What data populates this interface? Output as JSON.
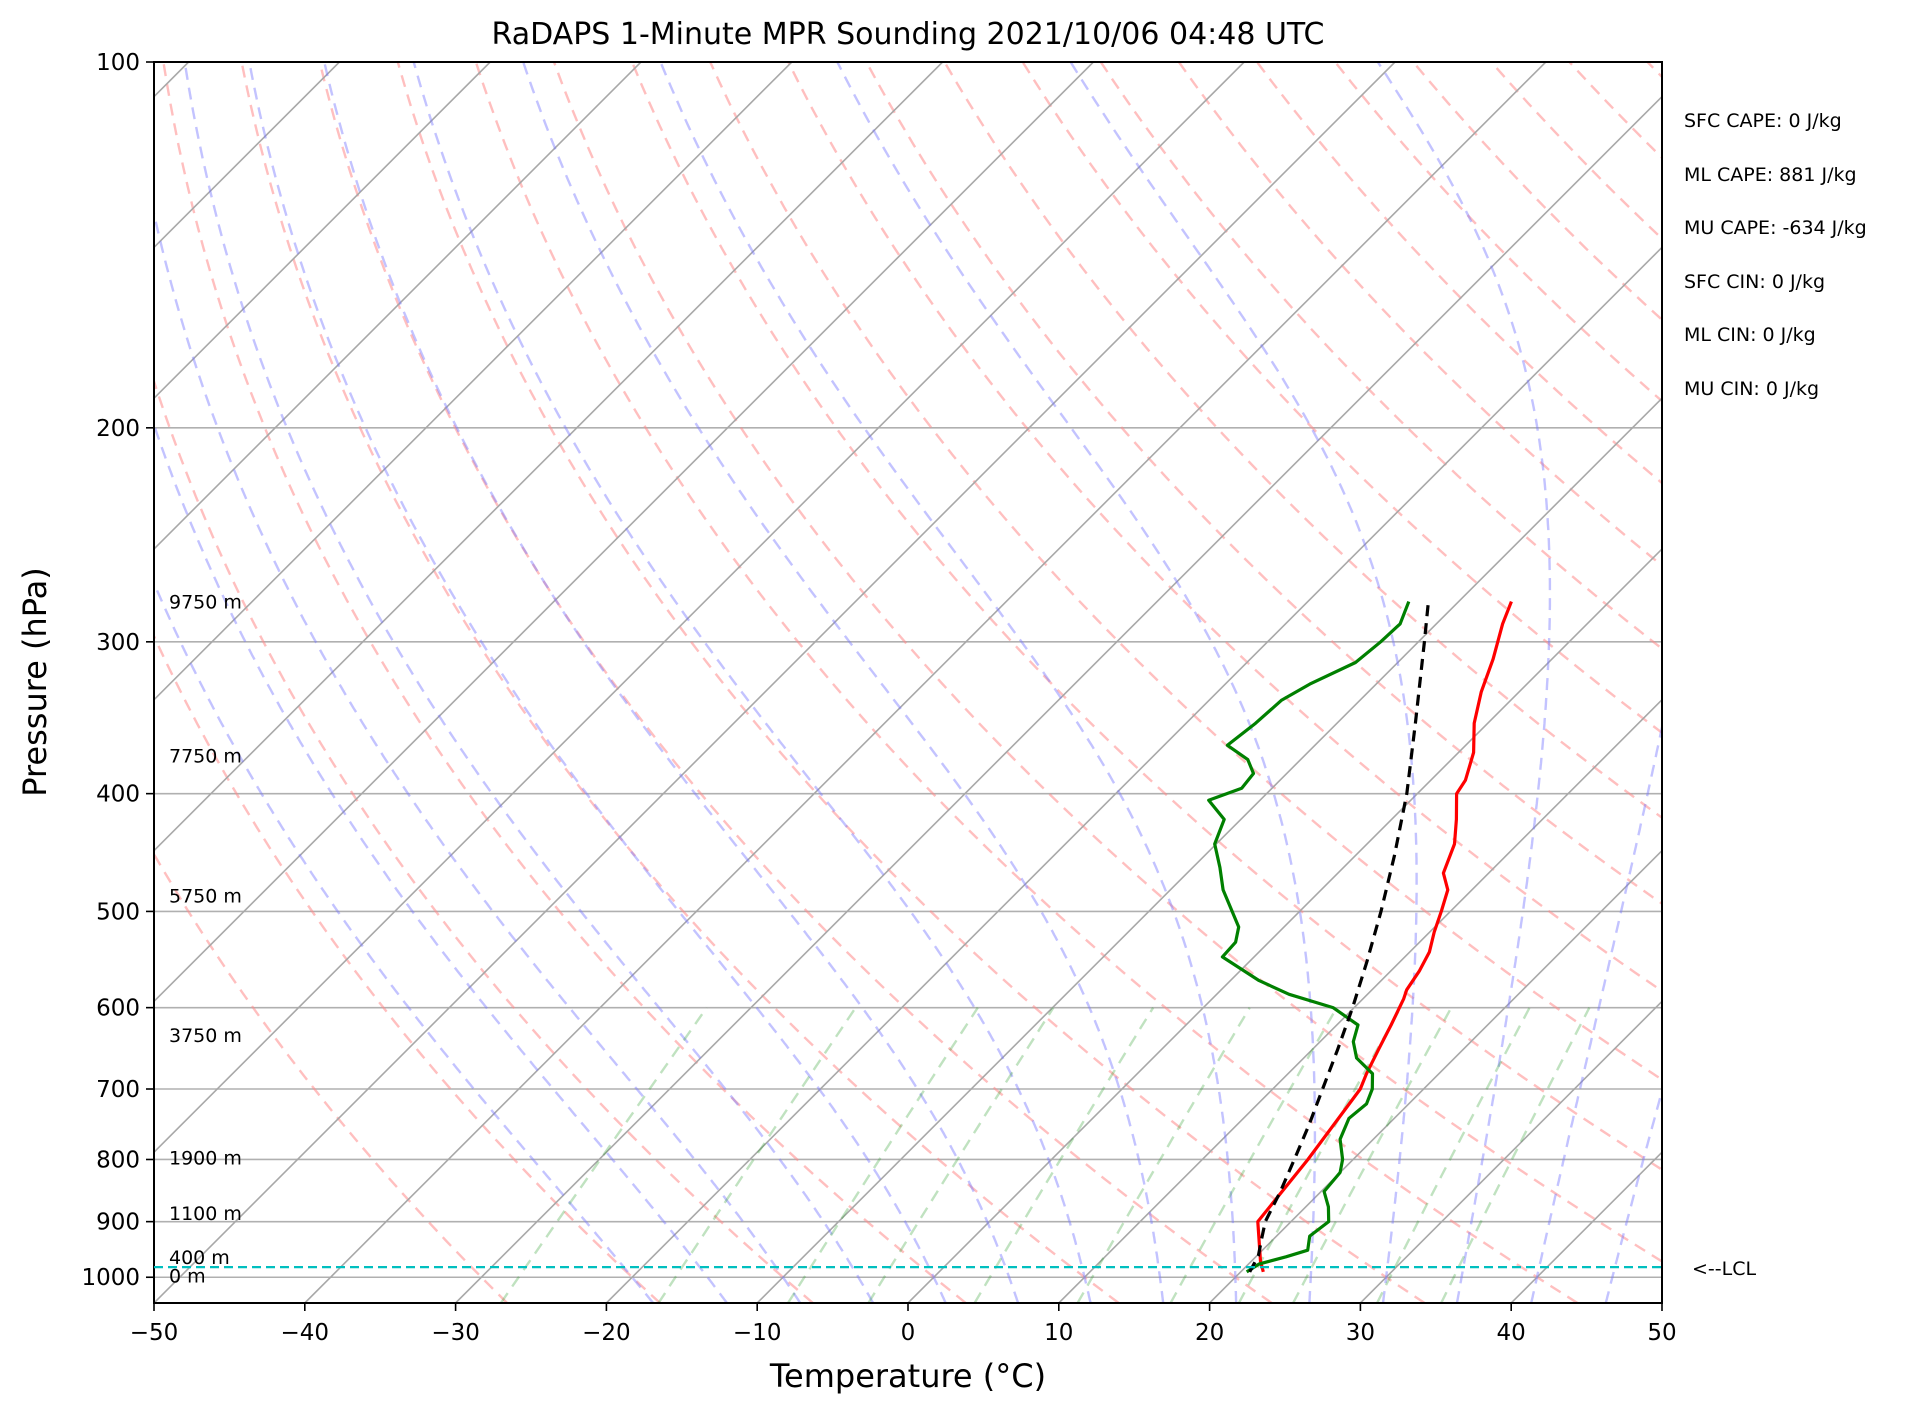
{
  "chart_data": {
    "type": "line",
    "title": "RaDAPS 1-Minute MPR Sounding 2021/10/06 04:48 UTC",
    "xlabel": "Temperature (°C)",
    "ylabel": "Pressure (hPa)",
    "xlim": [
      -50,
      50
    ],
    "ylim": [
      1050,
      100
    ],
    "y_scale": "log",
    "skew": "skew-T log-P",
    "grid": true,
    "x_ticks": [
      "−50",
      "−40",
      "−30",
      "−20",
      "−10",
      "0",
      "10",
      "20",
      "30",
      "40",
      "50"
    ],
    "y_ticks": [
      {
        "p": 100,
        "label": "100"
      },
      {
        "p": 200,
        "label": "200"
      },
      {
        "p": 300,
        "label": "300"
      },
      {
        "p": 400,
        "label": "400"
      },
      {
        "p": 500,
        "label": "500"
      },
      {
        "p": 600,
        "label": "600"
      },
      {
        "p": 700,
        "label": "700"
      },
      {
        "p": 800,
        "label": "800"
      },
      {
        "p": 900,
        "label": "900"
      },
      {
        "p": 1000,
        "label": "1000"
      }
    ],
    "height_labels": [
      {
        "p": 278,
        "label": "9750 m"
      },
      {
        "p": 372,
        "label": "7750 m"
      },
      {
        "p": 485,
        "label": "5750 m"
      },
      {
        "p": 632,
        "label": "3750 m"
      },
      {
        "p": 797,
        "label": "1900 m"
      },
      {
        "p": 885,
        "label": "1100 m"
      },
      {
        "p": 962,
        "label": "400 m"
      },
      {
        "p": 997,
        "label": "0 m"
      }
    ],
    "lcl": {
      "pressure": 981,
      "label": "<--LCL",
      "color": "#00bfbf"
    },
    "series": [
      {
        "color": "#ff0000",
        "points": [
          [
            990,
            21.5
          ],
          [
            970,
            20.6
          ],
          [
            900,
            17.8
          ],
          [
            800,
            17.0
          ],
          [
            700,
            15.8
          ],
          [
            680,
            15.2
          ],
          [
            650,
            14.4
          ],
          [
            620,
            13.6
          ],
          [
            590,
            12.7
          ],
          [
            580,
            12.3
          ],
          [
            560,
            11.9
          ],
          [
            540,
            11.3
          ],
          [
            520,
            10.3
          ],
          [
            500,
            9.4
          ],
          [
            480,
            8.4
          ],
          [
            465,
            7.0
          ],
          [
            440,
            5.8
          ],
          [
            420,
            4.3
          ],
          [
            400,
            2.6
          ],
          [
            390,
            2.3
          ],
          [
            370,
            1.0
          ],
          [
            350,
            -0.9
          ],
          [
            330,
            -2.5
          ],
          [
            310,
            -3.9
          ],
          [
            290,
            -5.6
          ],
          [
            278,
            -6.5
          ]
        ]
      },
      {
        "color": "#008000",
        "points": [
          [
            990,
            20.4
          ],
          [
            975,
            20.7
          ],
          [
            962,
            22.0
          ],
          [
            950,
            23.0
          ],
          [
            925,
            22.2
          ],
          [
            900,
            22.5
          ],
          [
            875,
            21.5
          ],
          [
            850,
            20.2
          ],
          [
            820,
            20.0
          ],
          [
            800,
            19.3
          ],
          [
            770,
            17.8
          ],
          [
            740,
            17.0
          ],
          [
            720,
            17.2
          ],
          [
            700,
            16.6
          ],
          [
            680,
            15.6
          ],
          [
            660,
            13.5
          ],
          [
            640,
            12.2
          ],
          [
            620,
            11.4
          ],
          [
            600,
            8.6
          ],
          [
            585,
            4.8
          ],
          [
            570,
            1.9
          ],
          [
            545,
            -2.1
          ],
          [
            530,
            -2.2
          ],
          [
            515,
            -3.0
          ],
          [
            480,
            -6.5
          ],
          [
            460,
            -8.2
          ],
          [
            440,
            -10.1
          ],
          [
            420,
            -11.1
          ],
          [
            405,
            -13.4
          ],
          [
            396,
            -12.0
          ],
          [
            385,
            -12.2
          ],
          [
            375,
            -13.5
          ],
          [
            365,
            -15.8
          ],
          [
            350,
            -15.4
          ],
          [
            335,
            -15.2
          ],
          [
            325,
            -14.4
          ],
          [
            312,
            -12.8
          ],
          [
            300,
            -12.5
          ],
          [
            290,
            -12.4
          ],
          [
            278,
            -13.3
          ]
        ]
      },
      {
        "color": "#000000",
        "dashed": true,
        "points": [
          [
            990,
            20.6
          ],
          [
            960,
            20.1
          ],
          [
            930,
            19.2
          ],
          [
            900,
            18.3
          ],
          [
            850,
            17.3
          ],
          [
            800,
            16.1
          ],
          [
            750,
            14.8
          ],
          [
            700,
            13.3
          ],
          [
            650,
            11.7
          ],
          [
            600,
            9.9
          ],
          [
            550,
            7.8
          ],
          [
            500,
            5.4
          ],
          [
            450,
            2.6
          ],
          [
            400,
            -0.7
          ],
          [
            350,
            -4.8
          ],
          [
            300,
            -9.6
          ],
          [
            278,
            -12.0
          ]
        ]
      }
    ]
  },
  "indices": [
    "SFC CAPE: 0 J/kg",
    "ML CAPE: 881 J/kg",
    "MU CAPE: -634 J/kg",
    "SFC CIN: 0 J/kg",
    "ML CIN: 0 J/kg",
    "MU CIN: 0 J/kg"
  ]
}
